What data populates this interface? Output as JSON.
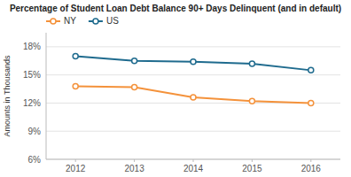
{
  "chart_data": {
    "type": "line",
    "title": "Percentage of Student Loan Debt Balance 90+ Days Delinquent (and in default)",
    "y_label": "Amounts in Thousands",
    "x": [
      2012,
      2013,
      2014,
      2015,
      2016
    ],
    "series": [
      {
        "name": "NY",
        "color": "#F4923B",
        "values": [
          0.138,
          0.137,
          0.126,
          0.122,
          0.12
        ]
      },
      {
        "name": "US",
        "color": "#1F6B8E",
        "values": [
          0.17,
          0.165,
          0.164,
          0.162,
          0.155
        ]
      }
    ],
    "xlim": [
      2011.5,
      2016.5
    ],
    "xticks": [
      2012,
      2013,
      2014,
      2015,
      2016
    ],
    "ylim": [
      0.06,
      0.195
    ],
    "yticks": [
      {
        "value": 0.06,
        "label": "6%"
      },
      {
        "value": 0.09,
        "label": "9%"
      },
      {
        "value": 0.12,
        "label": "12%"
      },
      {
        "value": 0.15,
        "label": "15%"
      },
      {
        "value": 0.18,
        "label": "18%"
      }
    ],
    "grid": true,
    "legend": "top-left",
    "marker": "circle"
  }
}
